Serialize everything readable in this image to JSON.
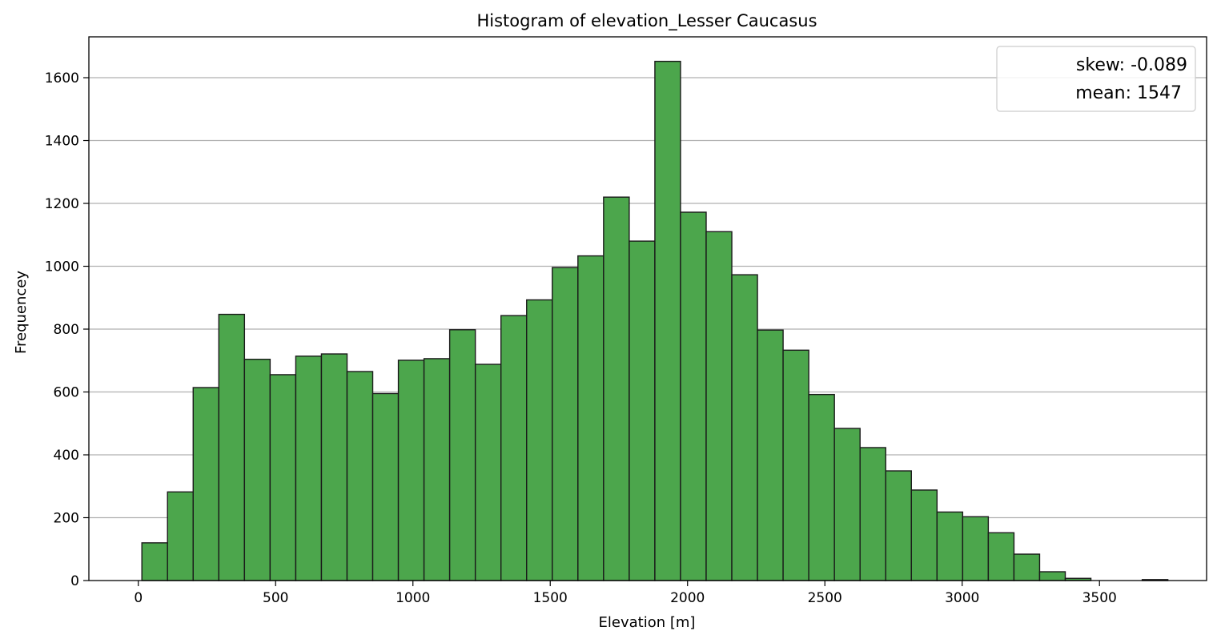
{
  "chart_data": {
    "type": "bar",
    "title": "Histogram of elevation_Lesser Caucasus",
    "xlabel": "Elevation [m]",
    "ylabel": "Frequencey",
    "xlim": [
      -180,
      3890
    ],
    "ylim": [
      0,
      1730
    ],
    "xticks": [
      0,
      500,
      1000,
      1500,
      2000,
      2500,
      3000,
      3500
    ],
    "yticks": [
      0,
      200,
      400,
      600,
      800,
      1000,
      1200,
      1400,
      1600
    ],
    "grid": "y",
    "legend_position": "top-right",
    "legend": [
      "skew: -0.089",
      "mean: 1547"
    ],
    "bar_color": "#4ca64c",
    "edge_color": "#1a1a1a",
    "bin_start": 13,
    "bin_width": 93.4,
    "values": [
      120,
      282,
      614,
      847,
      704,
      655,
      714,
      721,
      665,
      595,
      701,
      706,
      798,
      688,
      843,
      893,
      996,
      1033,
      1220,
      1080,
      1652,
      1172,
      1110,
      973,
      797,
      733,
      592,
      484,
      423,
      349,
      288,
      218,
      203,
      152,
      84,
      28,
      7,
      0,
      0,
      3
    ]
  }
}
